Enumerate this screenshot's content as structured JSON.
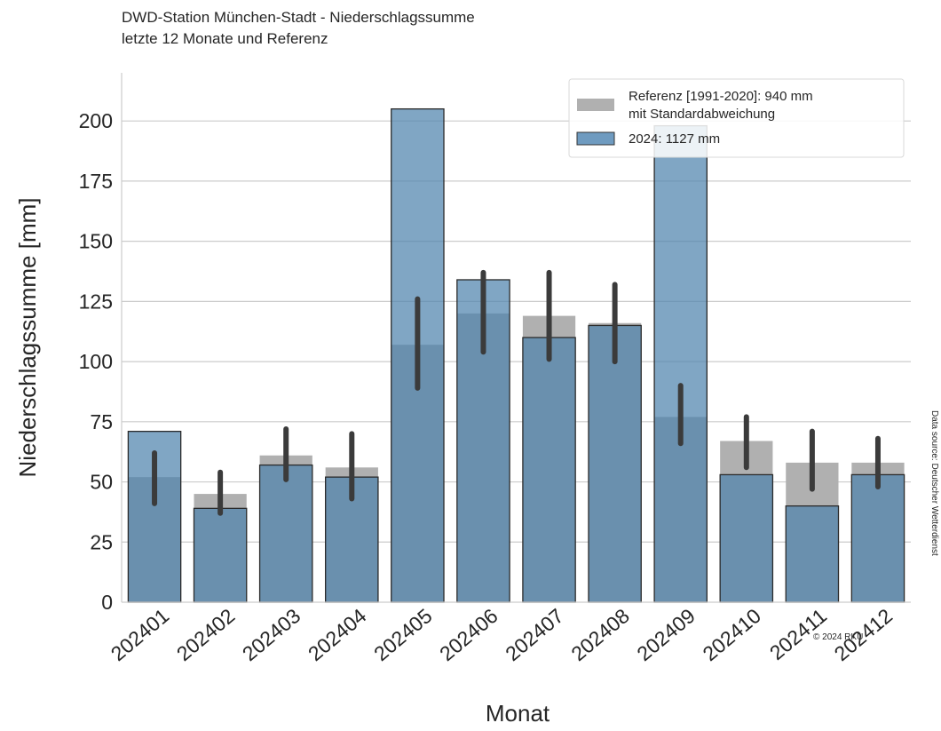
{
  "chart_data": {
    "type": "bar",
    "title": "DWD-Station München-Stadt - Niederschlagssumme",
    "subtitle": "letzte 12 Monate und Referenz",
    "xlabel": "Monat",
    "ylabel": "Niederschlagssumme [mm]",
    "ylim": [
      0,
      220
    ],
    "yticks": [
      0,
      25,
      50,
      75,
      100,
      125,
      150,
      175,
      200
    ],
    "grid": "horizontal",
    "legend_position": "top-right",
    "categories": [
      "202401",
      "202402",
      "202403",
      "202404",
      "202405",
      "202406",
      "202407",
      "202408",
      "202409",
      "202410",
      "202411",
      "202412"
    ],
    "series": [
      {
        "name": "Referenz [1991-2020]: 940 mm mit Standardabweichung",
        "color": "#b0b0b0",
        "values": [
          52,
          45,
          61,
          56,
          107,
          120,
          119,
          116,
          77,
          67,
          58,
          58
        ],
        "error_low": [
          41,
          37,
          51,
          43,
          89,
          104,
          101,
          100,
          66,
          56,
          47,
          48
        ],
        "error_high": [
          62,
          54,
          72,
          70,
          126,
          137,
          137,
          132,
          90,
          77,
          71,
          68
        ]
      },
      {
        "name": "2024: 1127 mm",
        "color": "#4f83ad",
        "values": [
          71,
          39,
          57,
          52,
          205,
          134,
          110,
          115,
          198,
          53,
          40,
          53
        ]
      }
    ],
    "legend_entries": [
      "Referenz [1991-2020]: 940 mm",
      "mit Standardabweichung",
      "2024: 1127 mm"
    ],
    "annotations": {
      "source": "Data source: Deutscher Wetterdienst",
      "copyright": "© 2024 RKU"
    }
  }
}
